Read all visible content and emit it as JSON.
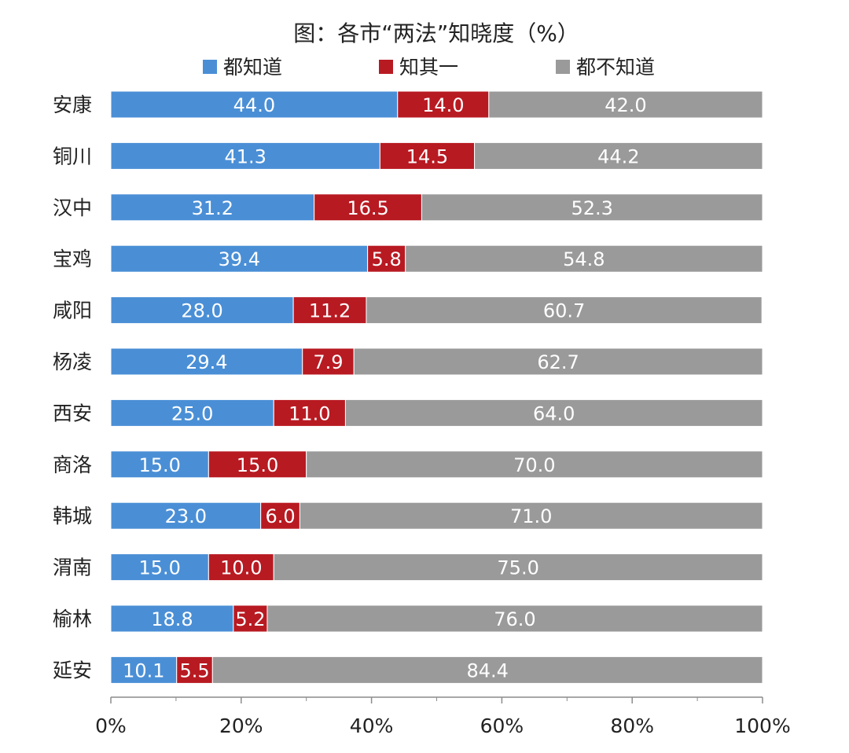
{
  "chart_data": {
    "type": "bar",
    "orientation": "horizontal",
    "stacked": true,
    "title": "图：各市“两法”知晓度（%）",
    "categories": [
      "安康",
      "铜川",
      "汉中",
      "宝鸡",
      "咸阳",
      "杨凌",
      "西安",
      "商洛",
      "韩城",
      "渭南",
      "榆林",
      "延安"
    ],
    "series": [
      {
        "name": "都知道",
        "color": "#4a8fd6",
        "values": [
          44.0,
          41.3,
          31.2,
          39.4,
          28.0,
          29.4,
          25.0,
          15.0,
          23.0,
          15.0,
          18.8,
          10.1
        ]
      },
      {
        "name": "知其一",
        "color": "#b81a22",
        "values": [
          14.0,
          14.5,
          16.5,
          5.8,
          11.2,
          7.9,
          11.0,
          15.0,
          6.0,
          10.0,
          5.2,
          5.5
        ]
      },
      {
        "name": "都不知道",
        "color": "#9a9a9a",
        "values": [
          42.0,
          44.2,
          52.3,
          54.8,
          60.7,
          62.7,
          64.0,
          70.0,
          71.0,
          75.0,
          76.0,
          84.4
        ]
      }
    ],
    "xlim": [
      0,
      100
    ],
    "xticks": [
      "0%",
      "20%",
      "40%",
      "60%",
      "80%",
      "100%"
    ],
    "legend_position": "top",
    "grid": false
  }
}
